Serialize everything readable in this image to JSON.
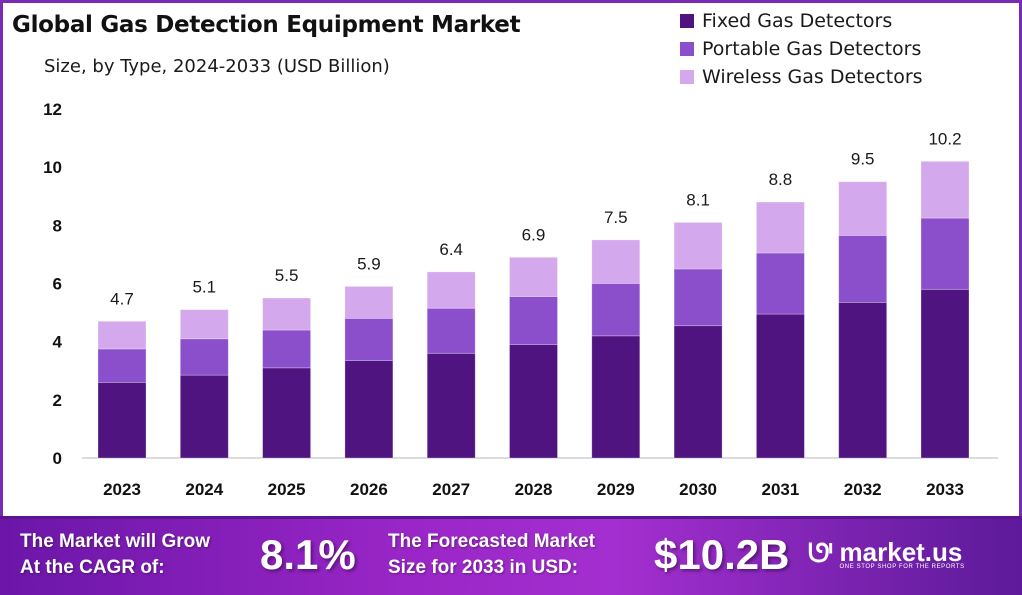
{
  "header": {
    "title": "Global Gas Detection Equipment Market",
    "subtitle": "Size, by Type, 2024-2033 (USD Billion)"
  },
  "legend": [
    {
      "label": "Fixed Gas Detectors",
      "color": "#4f1480"
    },
    {
      "label": "Portable Gas Detectors",
      "color": "#8b4fcc"
    },
    {
      "label": "Wireless Gas Detectors",
      "color": "#d4a8ec"
    }
  ],
  "chart_data": {
    "type": "bar",
    "stacked": true,
    "title": "Global Gas Detection Equipment Market",
    "subtitle": "Size, by Type, 2024-2033 (USD Billion)",
    "xlabel": "",
    "ylabel": "",
    "ylim": [
      0,
      12
    ],
    "yticks": [
      0,
      2,
      4,
      6,
      8,
      10,
      12
    ],
    "grid": false,
    "legend_position": "top-right",
    "categories": [
      "2023",
      "2024",
      "2025",
      "2026",
      "2027",
      "2028",
      "2029",
      "2030",
      "2031",
      "2032",
      "2033"
    ],
    "totals": [
      4.7,
      5.1,
      5.5,
      5.9,
      6.4,
      6.9,
      7.5,
      8.1,
      8.8,
      9.5,
      10.2
    ],
    "total_labels": [
      "4.7",
      "5.1",
      "5.5",
      "5.9",
      "6.4",
      "6.9",
      "7.5",
      "8.1",
      "8.8",
      "9.5",
      "10.2"
    ],
    "series": [
      {
        "name": "Fixed Gas Detectors",
        "color": "#4f1480",
        "values": [
          2.6,
          2.85,
          3.1,
          3.35,
          3.6,
          3.9,
          4.2,
          4.55,
          4.95,
          5.35,
          5.8
        ]
      },
      {
        "name": "Portable Gas Detectors",
        "color": "#8b4fcc",
        "values": [
          1.15,
          1.25,
          1.3,
          1.45,
          1.55,
          1.65,
          1.8,
          1.95,
          2.1,
          2.3,
          2.45
        ]
      },
      {
        "name": "Wireless Gas Detectors",
        "color": "#d4a8ec",
        "values": [
          0.95,
          1.0,
          1.1,
          1.1,
          1.25,
          1.35,
          1.5,
          1.6,
          1.75,
          1.85,
          1.95
        ]
      }
    ]
  },
  "banner": {
    "cagr_text_line1": "The Market will Grow",
    "cagr_text_line2": "At the CAGR of:",
    "cagr_value": "8.1%",
    "forecast_text_line1": "The Forecasted Market",
    "forecast_text_line2": "Size for 2033 in USD:",
    "forecast_value": "$10.2B",
    "brand_name": "market.us",
    "brand_tagline": "ONE STOP SHOP FOR THE REPORTS"
  }
}
